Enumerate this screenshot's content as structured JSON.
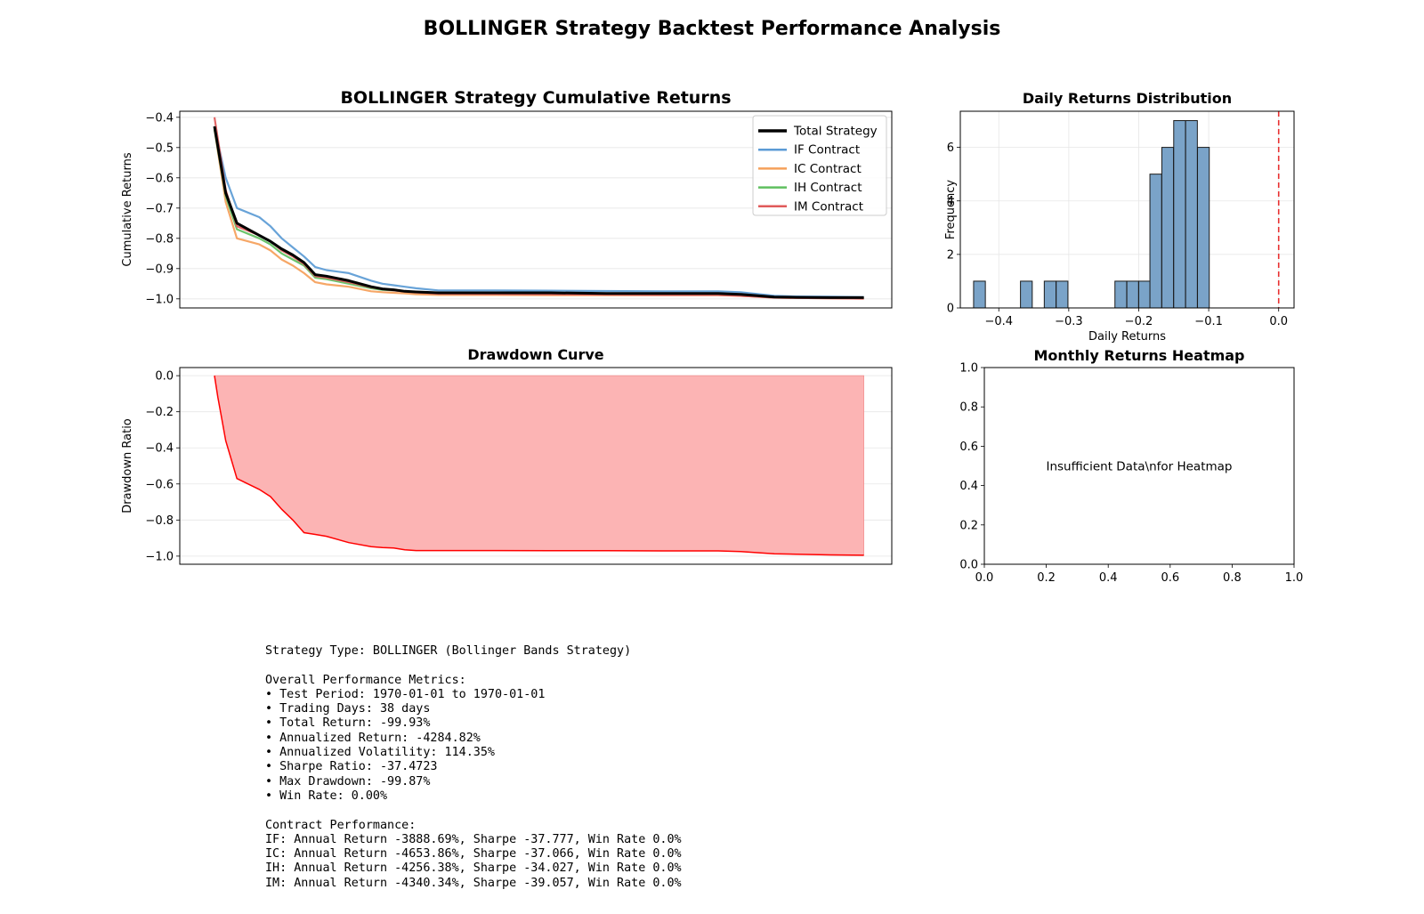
{
  "figure_title": "BOLLINGER Strategy Backtest Performance Analysis",
  "colors": {
    "total": "#000000",
    "IF": "#5b9bd5",
    "IC": "#f5a05a",
    "IH": "#5fbf5f",
    "IM": "#e05a5a",
    "drawdown_line": "#ff0000",
    "drawdown_fill": "#fcb4b4",
    "hist_bar": "#7aa3c8",
    "zero_line": "#e83030"
  },
  "chart_data": [
    {
      "id": "cumret",
      "type": "line",
      "title": "BOLLINGER Strategy Cumulative Returns",
      "xlabel": "",
      "ylabel": "Cumulative Returns",
      "ylim": [
        -1.03,
        -0.38
      ],
      "yticks": [
        -0.4,
        -0.5,
        -0.6,
        -0.7,
        -0.8,
        -0.9,
        -1.0
      ],
      "ytick_labels": [
        "−0.4",
        "−0.5",
        "−0.6",
        "−0.7",
        "−0.8",
        "−0.9",
        "−1.0"
      ],
      "x_axis": "day index (no tick labels shown)",
      "xlim": [
        -3.1,
        60.5
      ],
      "legend_position": "top-right",
      "grid": true,
      "series": [
        {
          "name": "Total Strategy",
          "color_key": "total",
          "x": [
            0,
            1,
            2,
            4,
            5,
            6,
            7,
            8,
            9,
            10,
            12,
            14,
            15,
            16,
            17,
            18,
            20,
            25,
            30,
            35,
            40,
            45,
            47,
            50,
            52,
            55,
            58
          ],
          "values": [
            -0.43,
            -0.65,
            -0.75,
            -0.79,
            -0.81,
            -0.835,
            -0.855,
            -0.88,
            -0.92,
            -0.925,
            -0.94,
            -0.96,
            -0.967,
            -0.97,
            -0.975,
            -0.977,
            -0.98,
            -0.98,
            -0.98,
            -0.982,
            -0.982,
            -0.982,
            -0.985,
            -0.994,
            -0.995,
            -0.996,
            -0.996
          ]
        },
        {
          "name": "IF Contract",
          "color_key": "IF",
          "x": [
            0,
            1,
            2,
            4,
            5,
            6,
            7,
            8,
            9,
            10,
            12,
            14,
            15,
            16,
            17,
            18,
            20,
            25,
            30,
            35,
            40,
            45,
            47,
            50,
            52,
            55,
            58
          ],
          "values": [
            -0.43,
            -0.6,
            -0.7,
            -0.73,
            -0.76,
            -0.8,
            -0.83,
            -0.86,
            -0.895,
            -0.905,
            -0.915,
            -0.94,
            -0.95,
            -0.955,
            -0.96,
            -0.965,
            -0.972,
            -0.972,
            -0.973,
            -0.974,
            -0.975,
            -0.975,
            -0.978,
            -0.99,
            -0.992,
            -0.993,
            -0.994
          ]
        },
        {
          "name": "IC Contract",
          "color_key": "IC",
          "x": [
            0,
            1,
            2,
            4,
            5,
            6,
            7,
            8,
            9,
            10,
            12,
            14,
            15,
            16,
            17,
            18,
            20,
            25,
            30,
            35,
            40,
            45,
            47,
            50,
            52,
            55,
            58
          ],
          "values": [
            -0.44,
            -0.68,
            -0.8,
            -0.82,
            -0.84,
            -0.87,
            -0.89,
            -0.915,
            -0.945,
            -0.952,
            -0.96,
            -0.975,
            -0.978,
            -0.98,
            -0.982,
            -0.985,
            -0.987,
            -0.987,
            -0.988,
            -0.988,
            -0.988,
            -0.988,
            -0.99,
            -0.996,
            -0.997,
            -0.998,
            -0.999
          ]
        },
        {
          "name": "IH Contract",
          "color_key": "IH",
          "x": [
            0,
            1,
            2,
            4,
            5,
            6,
            7,
            8,
            9,
            10,
            12,
            14,
            15,
            16,
            17,
            18,
            20,
            25,
            30,
            35,
            40,
            45,
            47,
            50,
            52,
            55,
            58
          ],
          "values": [
            -0.44,
            -0.66,
            -0.77,
            -0.8,
            -0.82,
            -0.85,
            -0.87,
            -0.89,
            -0.93,
            -0.935,
            -0.95,
            -0.965,
            -0.97,
            -0.972,
            -0.975,
            -0.978,
            -0.981,
            -0.982,
            -0.982,
            -0.983,
            -0.984,
            -0.984,
            -0.987,
            -0.994,
            -0.995,
            -0.996,
            -0.997
          ]
        },
        {
          "name": "IM Contract",
          "color_key": "IM",
          "x": [
            0,
            1,
            2,
            4,
            5,
            6,
            7,
            8,
            9,
            10,
            12,
            14,
            15,
            16,
            17,
            18,
            20,
            25,
            30,
            35,
            40,
            45,
            47,
            50,
            52,
            55,
            58
          ],
          "values": [
            -0.4,
            -0.64,
            -0.76,
            -0.79,
            -0.81,
            -0.84,
            -0.86,
            -0.885,
            -0.925,
            -0.93,
            -0.945,
            -0.962,
            -0.968,
            -0.972,
            -0.976,
            -0.979,
            -0.983,
            -0.984,
            -0.985,
            -0.986,
            -0.987,
            -0.987,
            -0.99,
            -0.996,
            -0.997,
            -0.998,
            -0.999
          ]
        }
      ]
    },
    {
      "id": "hist",
      "type": "bar",
      "title": "Daily Returns Distribution",
      "xlabel": "Daily Returns",
      "ylabel": "Frequency",
      "xlim": [
        -0.455,
        0.022
      ],
      "ylim": [
        0,
        7.35
      ],
      "xticks": [
        -0.4,
        -0.3,
        -0.2,
        -0.1,
        0.0
      ],
      "xtick_labels": [
        "−0.4",
        "−0.3",
        "−0.2",
        "−0.1",
        "0.0"
      ],
      "yticks": [
        0,
        2,
        4,
        6
      ],
      "ytick_labels": [
        "0",
        "2",
        "4",
        "6"
      ],
      "grid": true,
      "reference_line_x": 0.0,
      "bin_width": 0.0168,
      "bin_starts": [
        -0.436,
        -0.369,
        -0.335,
        -0.318,
        -0.234,
        -0.217,
        -0.2,
        -0.184,
        -0.167,
        -0.15,
        -0.133,
        -0.116
      ],
      "values": [
        1,
        1,
        1,
        1,
        1,
        1,
        1,
        5,
        6,
        7,
        7,
        6
      ]
    },
    {
      "id": "drawdown",
      "type": "area",
      "title": "Drawdown Curve",
      "xlabel": "",
      "ylabel": "Drawdown Ratio",
      "ylim": [
        -1.045,
        0.045
      ],
      "yticks": [
        0.0,
        -0.2,
        -0.4,
        -0.6,
        -0.8,
        -1.0
      ],
      "ytick_labels": [
        "0.0",
        "−0.2",
        "−0.4",
        "−0.6",
        "−0.8",
        "−1.0"
      ],
      "xlim": [
        -3.1,
        60.5
      ],
      "grid": true,
      "x": [
        0,
        0.3,
        0.6,
        1,
        2,
        4,
        5,
        6,
        7,
        8,
        9,
        10,
        12,
        14,
        15,
        16,
        17,
        18,
        20,
        25,
        30,
        35,
        40,
        45,
        47,
        50,
        52,
        55,
        58
      ],
      "values": [
        0,
        -0.12,
        -0.22,
        -0.36,
        -0.57,
        -0.63,
        -0.67,
        -0.74,
        -0.8,
        -0.87,
        -0.88,
        -0.89,
        -0.925,
        -0.948,
        -0.953,
        -0.955,
        -0.965,
        -0.969,
        -0.969,
        -0.969,
        -0.97,
        -0.97,
        -0.971,
        -0.971,
        -0.975,
        -0.987,
        -0.99,
        -0.993,
        -0.995
      ]
    },
    {
      "id": "heatmap",
      "type": "heatmap",
      "title": "Monthly Returns Heatmap",
      "message": "Insufficient Data\\nfor Heatmap",
      "xlim": [
        0,
        1
      ],
      "ylim": [
        0,
        1
      ],
      "xticks": [
        0.0,
        0.2,
        0.4,
        0.6,
        0.8,
        1.0
      ],
      "yticks": [
        0.0,
        0.2,
        0.4,
        0.6,
        0.8,
        1.0
      ],
      "xtick_labels": [
        "0.0",
        "0.2",
        "0.4",
        "0.6",
        "0.8",
        "1.0"
      ],
      "ytick_labels": [
        "0.0",
        "0.2",
        "0.4",
        "0.6",
        "0.8",
        "1.0"
      ],
      "grid": false
    }
  ],
  "summary": {
    "strategy_type": "Strategy Type: BOLLINGER (Bollinger Bands Strategy)",
    "overall_header": "Overall Performance Metrics:",
    "overall_lines": [
      "• Test Period: 1970-01-01 to 1970-01-01",
      "• Trading Days: 38 days",
      "• Total Return: -99.93%",
      "• Annualized Return: -4284.82%",
      "• Annualized Volatility: 114.35%",
      "• Sharpe Ratio: -37.4723",
      "• Max Drawdown: -99.87%",
      "• Win Rate: 0.00%"
    ],
    "contract_header": "Contract Performance:",
    "contract_lines": [
      "IF: Annual Return -3888.69%, Sharpe -37.777, Win Rate 0.0%",
      "IC: Annual Return -4653.86%, Sharpe -37.066, Win Rate 0.0%",
      "IH: Annual Return -4256.38%, Sharpe -34.027, Win Rate 0.0%",
      "IM: Annual Return -4340.34%, Sharpe -39.057, Win Rate 0.0%"
    ]
  }
}
